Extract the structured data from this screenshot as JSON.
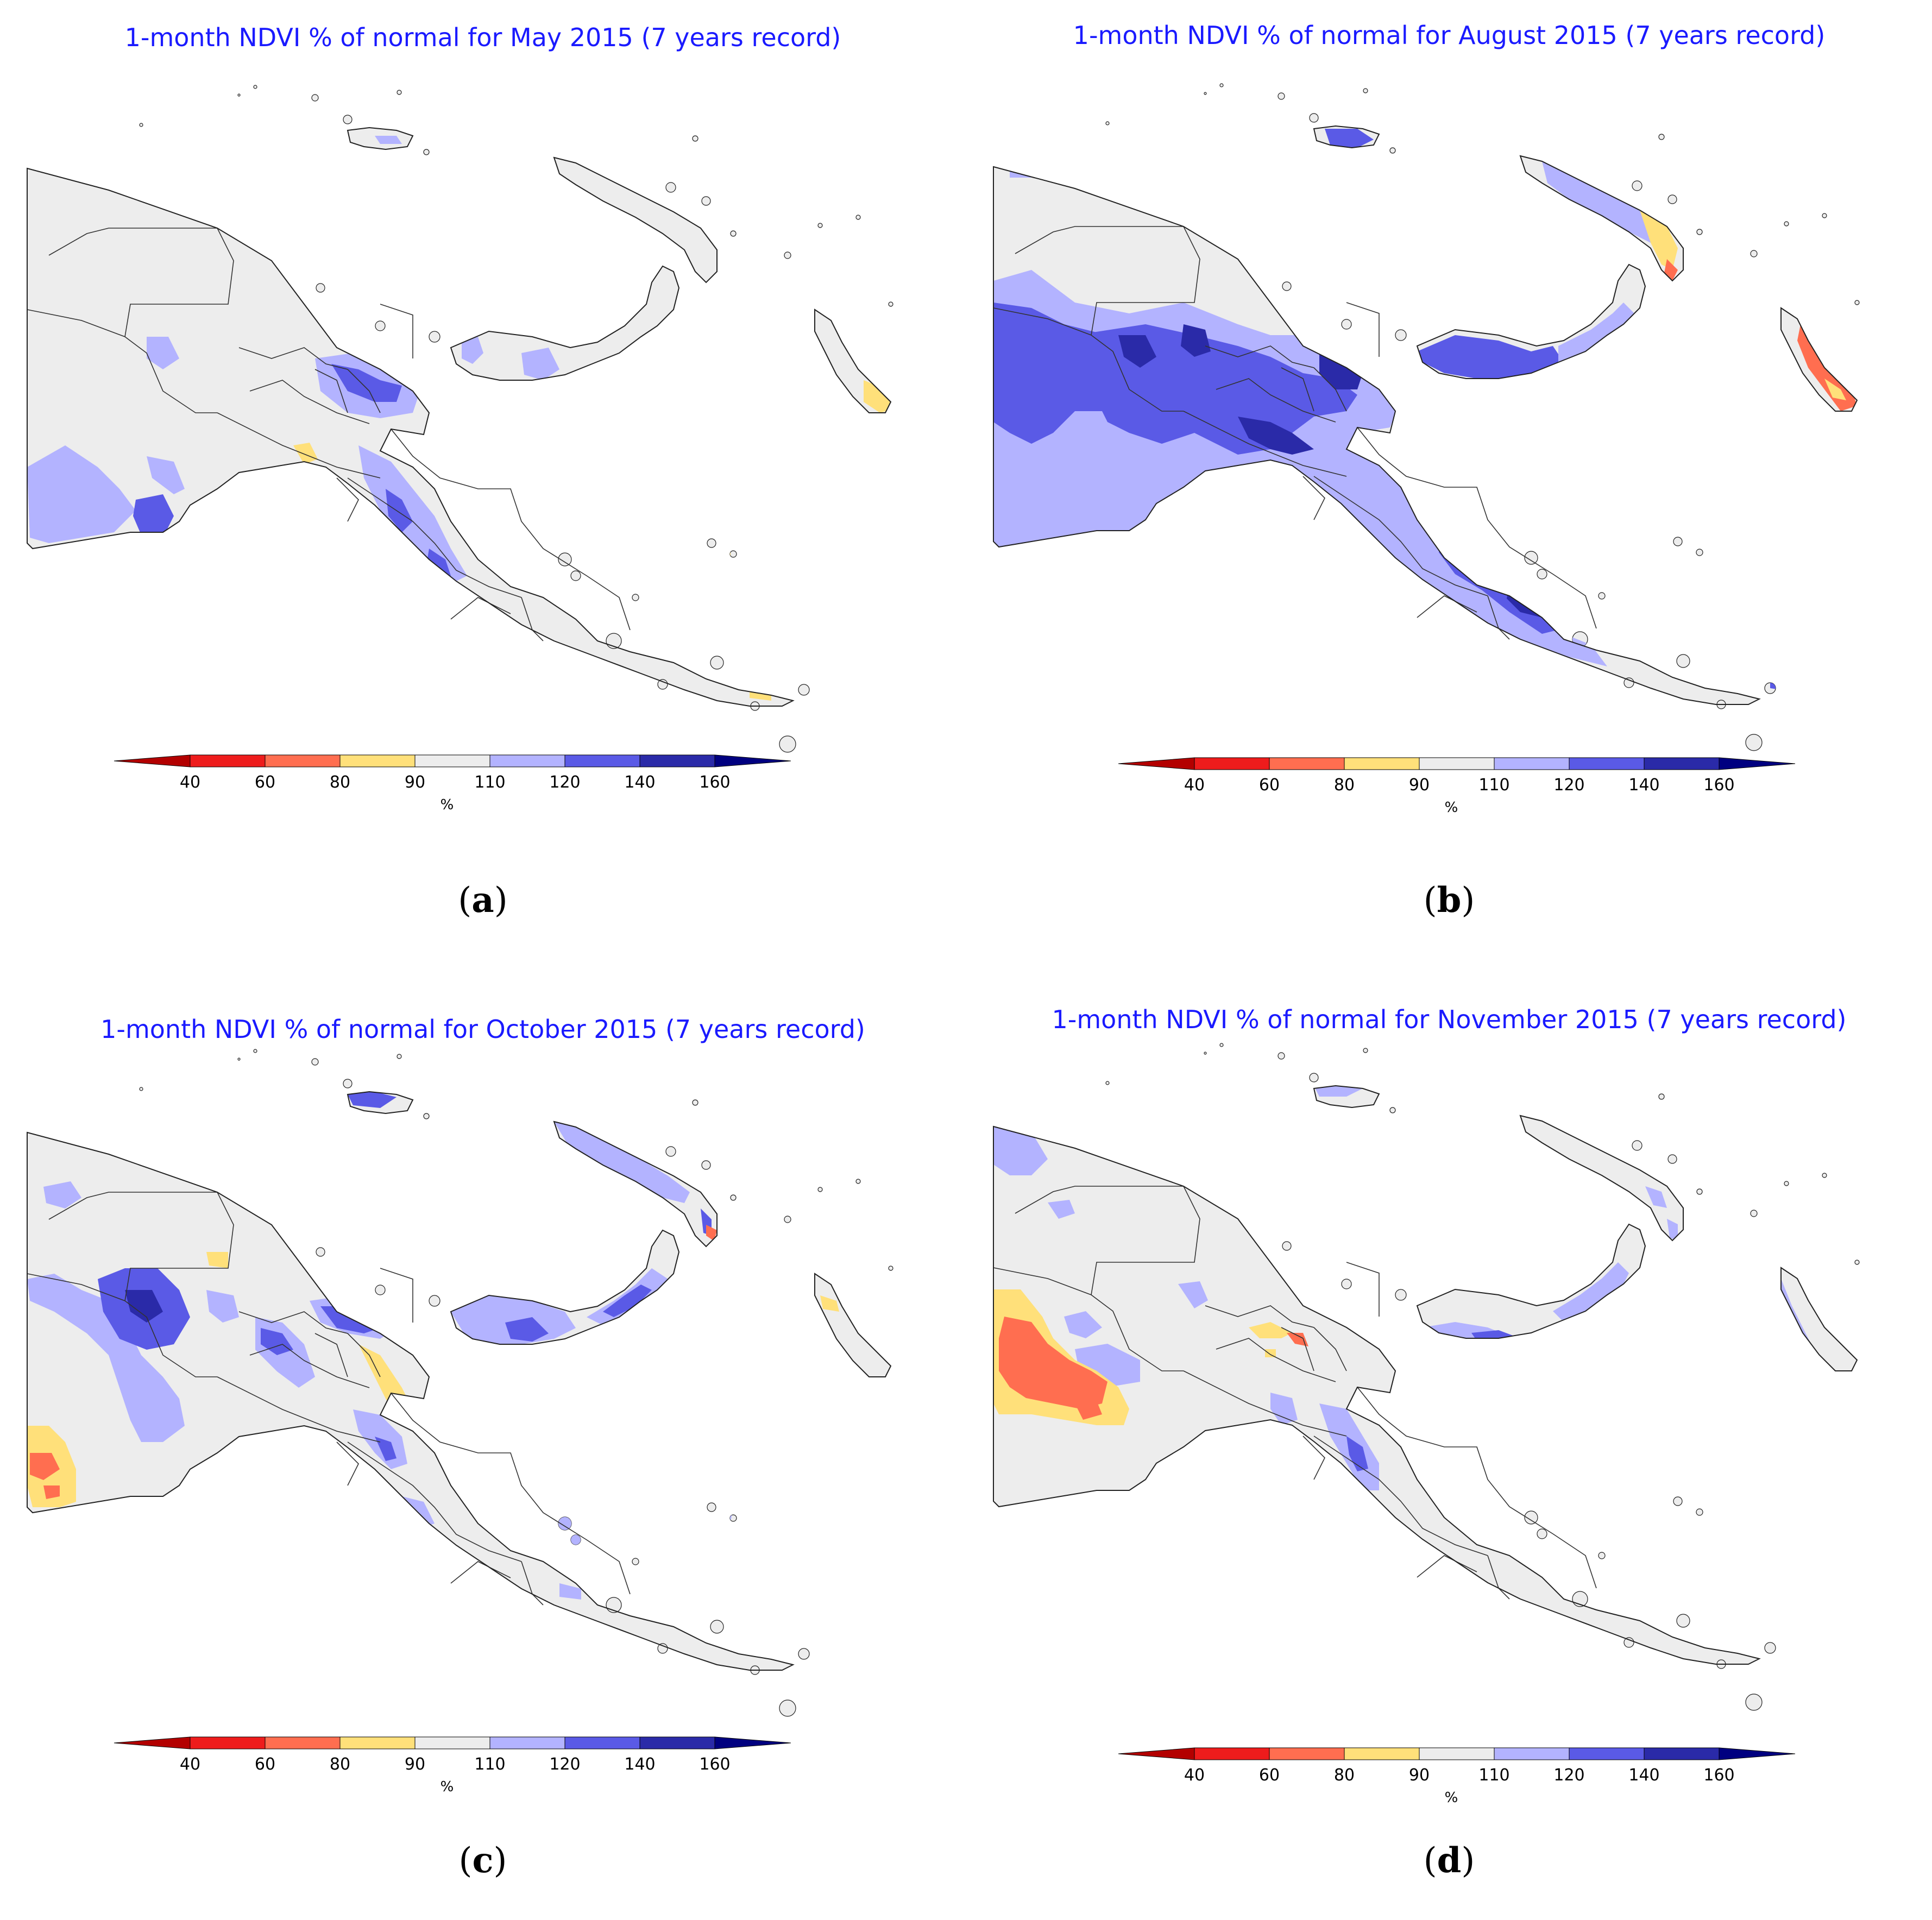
{
  "panels": [
    {
      "id": "a",
      "title": "1-month NDVI % of normal for May 2015 (7 years record)",
      "label": "a"
    },
    {
      "id": "b",
      "title": "1-month NDVI % of normal for August 2015 (7 years record)",
      "label": "b"
    },
    {
      "id": "c",
      "title": "1-month NDVI % of normal for October 2015 (7 years record)",
      "label": "c"
    },
    {
      "id": "d",
      "title": "1-month NDVI % of normal for November 2015 (7 years record)",
      "label": "d"
    }
  ],
  "colorbar": {
    "ticks": [
      "40",
      "60",
      "80",
      "90",
      "110",
      "120",
      "140",
      "160"
    ],
    "unit": "%",
    "colors": [
      "#b30000",
      "#ee1c1c",
      "#ff6e50",
      "#ffe07a",
      "#ededed",
      "#b3b3ff",
      "#5a5ae6",
      "#2a2aa8",
      "#000080"
    ]
  },
  "anomaly_colors": {
    "dry_severe": "#ff6e50",
    "dry": "#ffe07a",
    "normal": "#ededed",
    "wet": "#b3b3ff",
    "wetter": "#5a5ae6",
    "wettest": "#2a2aa8"
  }
}
